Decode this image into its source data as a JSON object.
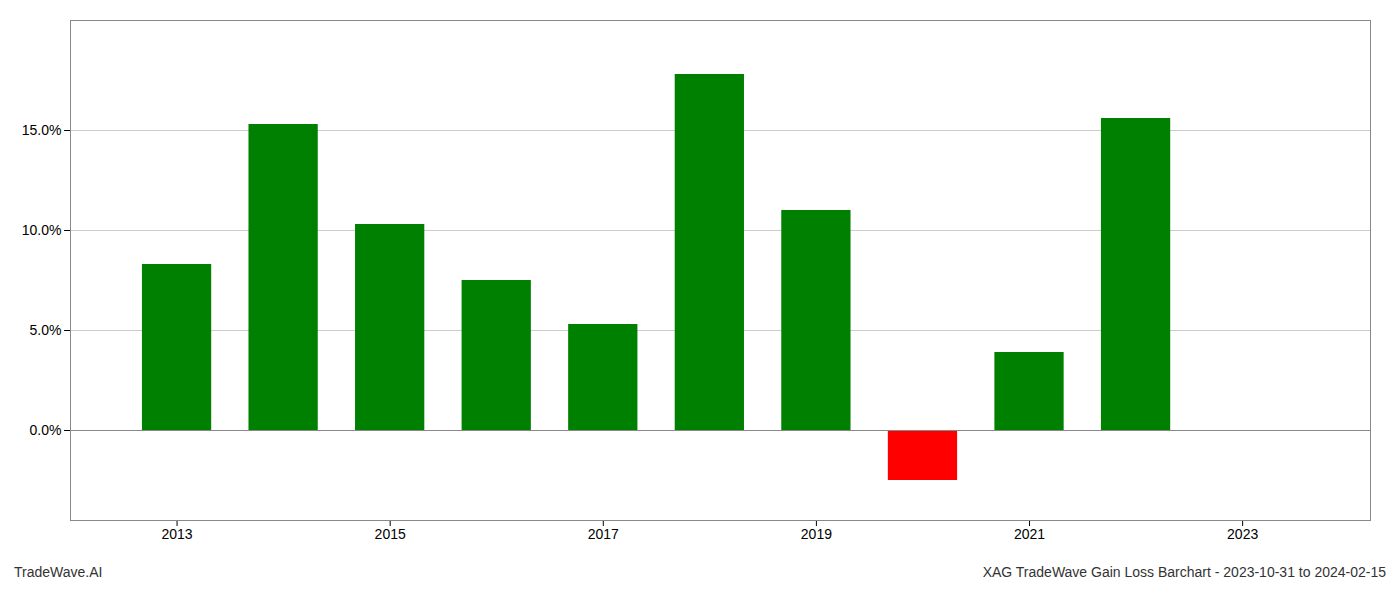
{
  "chart_data": {
    "type": "bar",
    "x": [
      2013,
      2014,
      2015,
      2016,
      2017,
      2018,
      2019,
      2020,
      2021,
      2022,
      2023
    ],
    "values": [
      0.083,
      0.153,
      0.103,
      0.075,
      0.053,
      0.178,
      0.11,
      -0.025,
      0.039,
      0.156,
      null
    ],
    "colors": [
      "#008000",
      "#008000",
      "#008000",
      "#008000",
      "#008000",
      "#008000",
      "#008000",
      "#ff0000",
      "#008000",
      "#008000",
      "#008000"
    ],
    "ylim": [
      -0.045,
      0.205
    ],
    "yticks": [
      {
        "value": 0.0,
        "label": "0.0%"
      },
      {
        "value": 0.05,
        "label": "5.0%"
      },
      {
        "value": 0.1,
        "label": "10.0%"
      },
      {
        "value": 0.15,
        "label": "15.0%"
      }
    ],
    "xlim": [
      2012.0,
      2024.2
    ],
    "xticks": [
      2013,
      2015,
      2017,
      2019,
      2021,
      2023
    ],
    "annotations": [
      "TradeWave.AI",
      "XAG TradeWave Gain Loss Barchart - 2023-10-31 to 2024-02-15"
    ],
    "grid": true
  }
}
